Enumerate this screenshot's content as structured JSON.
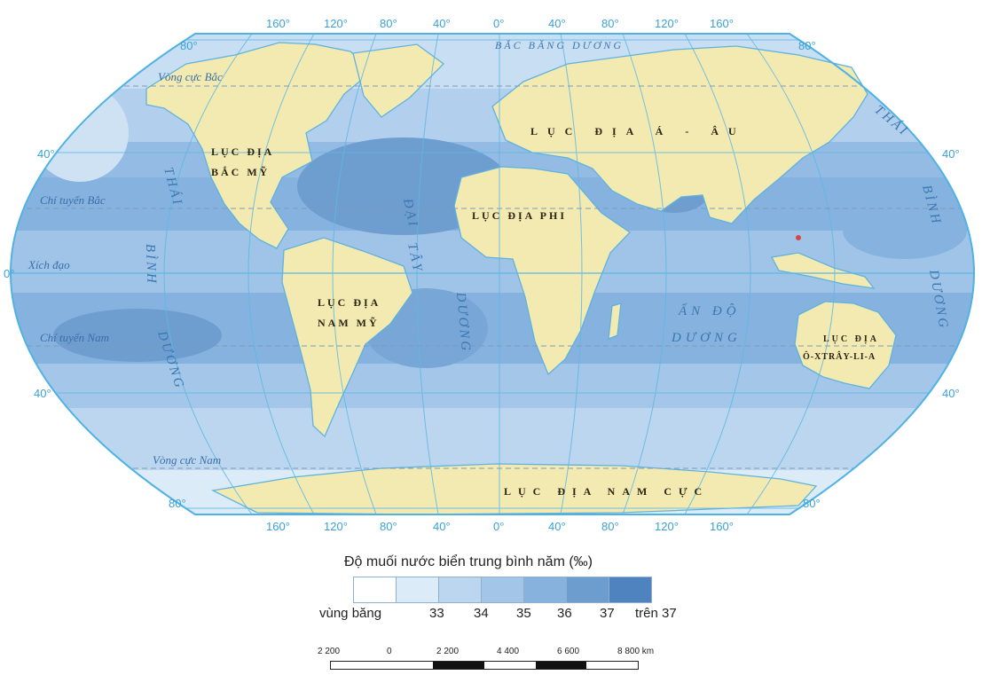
{
  "map": {
    "top_longitudes": [
      "160°",
      "120°",
      "80°",
      "40°",
      "0°",
      "40°",
      "80°",
      "120°",
      "160°"
    ],
    "bottom_longitudes": [
      "160°",
      "120°",
      "80°",
      "40°",
      "0°",
      "40°",
      "80°",
      "120°",
      "160°"
    ],
    "lat_left": {
      "n80": "80°",
      "n40": "40°",
      "eq": "0°",
      "s40": "40°",
      "s80": "80°"
    },
    "lat_right": {
      "n80": "80°",
      "n40": "40°",
      "s40": "40°",
      "s80": "80°"
    },
    "lines": {
      "arctic_circle": "Vòng cực Bắc",
      "tropic_cancer": "Chí tuyến Bắc",
      "equator": "Xích đạo",
      "tropic_capricorn": "Chí tuyến Nam",
      "antarctic_circle": "Vòng cực Nam"
    },
    "continents": {
      "north_america_1": "LỤC ĐỊA",
      "north_america_2": "BẮC MỸ",
      "south_america_1": "LỤC ĐỊA",
      "south_america_2": "NAM MỸ",
      "africa": "LỤC ĐỊA PHI",
      "eurasia": "LỤC ĐỊA Á - ÂU",
      "australia_1": "LỤC ĐỊA",
      "australia_2": "Ô-XTRÂY-LI-A",
      "antarctica": "LỤC ĐỊA NAM CỰC"
    },
    "oceans": {
      "arctic": "BẮC BĂNG DƯƠNG",
      "atlantic_1": "ĐẠI",
      "atlantic_2": "TÂY",
      "atlantic_3": "DƯƠNG",
      "indian_1": "ẤN ĐỘ",
      "indian_2": "DƯƠNG",
      "pacific_left_1": "THÁI",
      "pacific_left_2": "BÌNH",
      "pacific_left_3": "DƯƠNG",
      "pacific_right_1": "THÁI",
      "pacific_right_2": "BÌNH",
      "pacific_right_3": "DƯƠNG"
    }
  },
  "legend": {
    "title": "Độ muối nước biển trung bình năm (‰)",
    "colors": [
      "#ffffff",
      "#dcebf8",
      "#bcd6ef",
      "#a2c5e8",
      "#88b2de",
      "#6d9ccf",
      "#4f83c0"
    ],
    "labels": {
      "ice": "vùng băng",
      "l33": "33",
      "l34": "34",
      "l35": "35",
      "l36": "36",
      "l37": "37",
      "over37": "trên 37"
    }
  },
  "scale": {
    "labels": [
      "2 200",
      "0",
      "2 200",
      "4 400",
      "6 600",
      "8 800 km"
    ],
    "segment_colors": [
      "#ffffff",
      "#ffffff",
      "#111111",
      "#ffffff",
      "#111111",
      "#ffffff"
    ]
  },
  "colors": {
    "land": "#f3eab2",
    "land_stroke": "#5fb3dc",
    "ocean_base": "#a3c6e9",
    "frame": "#4fb2e3",
    "grid": "#5fb8e4",
    "dashed": "#7f9cb8"
  }
}
